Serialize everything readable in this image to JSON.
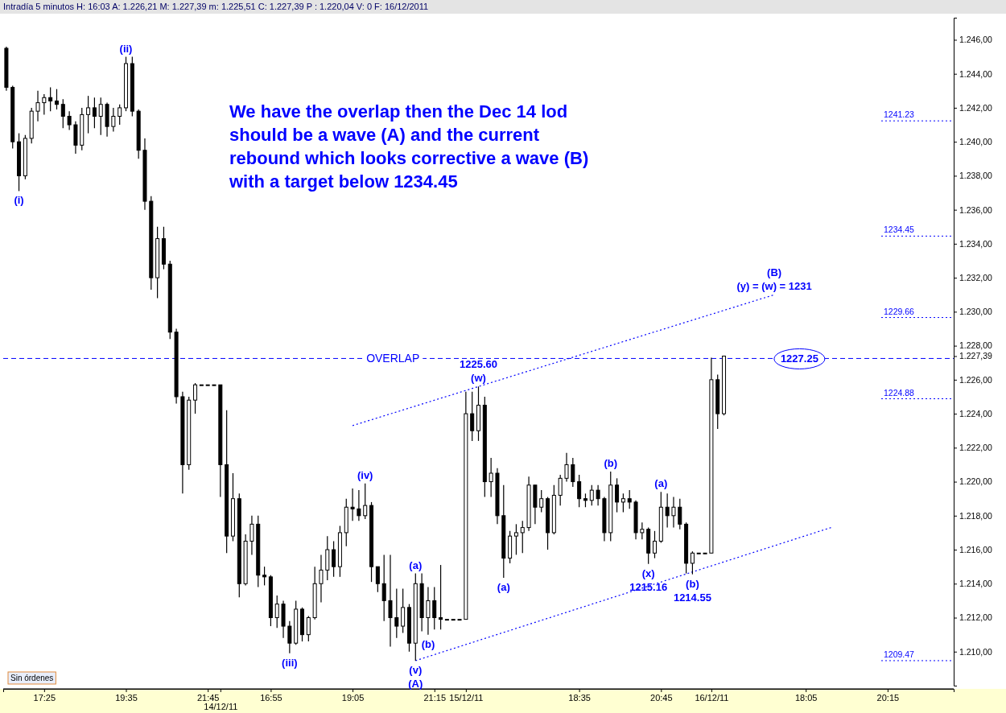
{
  "chart_data": {
    "type": "candlestick",
    "title": "Intradía 5 minutos H: 16:03 A: 1.226,21 M: 1.227,39 m: 1.225,51 C: 1.227,39 P : 1.220,04 V: 0 F: 16/12/2011",
    "color": "#000000",
    "categories": [
      null,
      null,
      null,
      null,
      null,
      null,
      "17:25",
      null,
      null,
      null,
      null,
      null,
      null,
      null,
      null,
      null,
      null,
      null,
      null,
      "19:35",
      null,
      null,
      null,
      null,
      null,
      null,
      null,
      null,
      null,
      null,
      null,
      null,
      "21:45",
      null,
      "14/12/11",
      null,
      null,
      null,
      null,
      null,
      null,
      null,
      "16:55",
      null,
      null,
      null,
      null,
      null,
      null,
      null,
      null,
      null,
      null,
      null,
      null,
      "19:05",
      null,
      null,
      null,
      null,
      null,
      null,
      null,
      null,
      null,
      null,
      null,
      null,
      "21:15",
      null,
      null,
      null,
      null,
      "15/12/11",
      null,
      null,
      null,
      null,
      null,
      null,
      null,
      null,
      null,
      null,
      null,
      null,
      null,
      null,
      null,
      null,
      null,
      "18:35",
      null,
      null,
      null,
      null,
      null,
      null,
      null,
      null,
      null,
      null,
      null,
      null,
      "20:45",
      null,
      null,
      null,
      null,
      null,
      null,
      null,
      "16/12/11",
      null,
      null,
      null,
      null,
      null,
      null,
      null,
      null,
      null,
      null,
      null,
      null,
      null,
      null,
      "18:05",
      null,
      null,
      null,
      null,
      null,
      null,
      null,
      null,
      null,
      null,
      null,
      null,
      "20:15",
      null,
      null,
      null,
      null,
      null,
      null,
      null,
      null,
      null,
      null
    ],
    "ohlc": [
      [
        1245.5,
        1245.6,
        1243.0,
        1243.2
      ],
      [
        1243.2,
        1243.3,
        1239.6,
        1240.0
      ],
      [
        1240.0,
        1240.5,
        1237.1,
        1238.0
      ],
      [
        1238.0,
        1240.4,
        1237.8,
        1240.2
      ],
      [
        1240.2,
        1242.0,
        1239.9,
        1241.8
      ],
      [
        1241.8,
        1243.0,
        1241.2,
        1242.3
      ],
      [
        1242.3,
        1242.8,
        1241.6,
        1242.6
      ],
      [
        1242.6,
        1243.2,
        1241.8,
        1242.4
      ],
      [
        1242.4,
        1243.1,
        1241.9,
        1242.2
      ],
      [
        1242.2,
        1242.5,
        1240.8,
        1241.5
      ],
      [
        1241.5,
        1241.8,
        1240.7,
        1241.0
      ],
      [
        1241.0,
        1241.2,
        1239.3,
        1239.8
      ],
      [
        1239.8,
        1242.0,
        1239.5,
        1241.6
      ],
      [
        1241.6,
        1242.7,
        1240.5,
        1242.0
      ],
      [
        1242.0,
        1242.6,
        1240.8,
        1241.5
      ],
      [
        1241.5,
        1242.6,
        1240.4,
        1242.2
      ],
      [
        1242.2,
        1242.3,
        1240.3,
        1240.9
      ],
      [
        1240.9,
        1242.0,
        1240.6,
        1241.5
      ],
      [
        1241.5,
        1242.2,
        1241.0,
        1242.0
      ],
      [
        1242.0,
        1245.0,
        1241.8,
        1244.6
      ],
      [
        1244.6,
        1245.0,
        1241.5,
        1241.8
      ],
      [
        1241.8,
        1241.9,
        1239.0,
        1239.5
      ],
      [
        1239.5,
        1240.2,
        1236.0,
        1236.5
      ],
      [
        1236.5,
        1236.8,
        1231.3,
        1232.0
      ],
      [
        1232.0,
        1235.0,
        1230.8,
        1234.3
      ],
      [
        1234.3,
        1235.0,
        1232.5,
        1232.8
      ],
      [
        1232.8,
        1233.0,
        1228.4,
        1228.8
      ],
      [
        1228.8,
        1229.0,
        1224.6,
        1225.0
      ],
      [
        1225.0,
        1225.3,
        1219.3,
        1221.0
      ],
      [
        1221.0,
        1225.0,
        1220.7,
        1224.8
      ],
      [
        1224.8,
        1225.8,
        1224.0,
        1225.7
      ],
      [
        1225.7,
        1225.7,
        1225.7,
        1225.7
      ],
      [
        1225.7,
        1225.7,
        1225.7,
        1225.7
      ],
      [
        1225.7,
        1225.7,
        1225.7,
        1225.7
      ],
      [
        1225.7,
        1225.7,
        1219.1,
        1221.0
      ],
      [
        1221.0,
        1224.2,
        1215.8,
        1216.8
      ],
      [
        1216.8,
        1220.5,
        1216.5,
        1219.0
      ],
      [
        1219.0,
        1219.3,
        1213.2,
        1214.0
      ],
      [
        1214.0,
        1216.9,
        1213.9,
        1216.5
      ],
      [
        1216.5,
        1218.0,
        1215.7,
        1217.5
      ],
      [
        1217.5,
        1218.0,
        1213.8,
        1214.5
      ],
      [
        1214.5,
        1215.0,
        1213.9,
        1214.4
      ],
      [
        1214.4,
        1214.5,
        1211.5,
        1212.0
      ],
      [
        1212.0,
        1213.3,
        1211.4,
        1212.8
      ],
      [
        1212.8,
        1213.0,
        1210.8,
        1211.5
      ],
      [
        1211.5,
        1211.8,
        1209.9,
        1210.5
      ],
      [
        1210.5,
        1213.0,
        1210.4,
        1212.5
      ],
      [
        1212.5,
        1212.6,
        1210.6,
        1211.0
      ],
      [
        1211.0,
        1212.1,
        1210.6,
        1212.0
      ],
      [
        1212.0,
        1215.0,
        1211.9,
        1214.0
      ],
      [
        1214.0,
        1215.7,
        1212.9,
        1214.8
      ],
      [
        1214.8,
        1216.8,
        1214.2,
        1216.0
      ],
      [
        1216.0,
        1216.5,
        1214.4,
        1215.0
      ],
      [
        1215.0,
        1217.4,
        1214.4,
        1217.0
      ],
      [
        1217.0,
        1219.0,
        1216.2,
        1218.5
      ],
      [
        1218.5,
        1219.6,
        1217.7,
        1218.4
      ],
      [
        1218.4,
        1219.5,
        1217.7,
        1218.0
      ],
      [
        1218.0,
        1219.9,
        1217.8,
        1218.6
      ],
      [
        1218.6,
        1218.8,
        1214.1,
        1215.0
      ],
      [
        1215.0,
        1215.0,
        1213.5,
        1214.0
      ],
      [
        1214.0,
        1215.7,
        1211.8,
        1213.0
      ],
      [
        1213.0,
        1215.7,
        1210.3,
        1212.0
      ],
      [
        1212.0,
        1213.7,
        1210.8,
        1211.5
      ],
      [
        1211.5,
        1213.7,
        1211.1,
        1212.6
      ],
      [
        1212.6,
        1212.8,
        1210.0,
        1210.5
      ],
      [
        1210.5,
        1214.6,
        1209.47,
        1214.0
      ],
      [
        1214.0,
        1214.6,
        1211.2,
        1212.0
      ],
      [
        1212.0,
        1213.8,
        1211.0,
        1213.0
      ],
      [
        1213.0,
        1213.8,
        1211.3,
        1212.0
      ],
      [
        1212.0,
        1215.1,
        1211.3,
        1211.9
      ],
      [
        1211.9,
        1211.9,
        1211.9,
        1211.9
      ],
      [
        1211.9,
        1211.9,
        1211.9,
        1211.9
      ],
      [
        1211.9,
        1211.9,
        1211.9,
        1211.9
      ],
      [
        1211.9,
        1225.3,
        1211.9,
        1224.0
      ],
      [
        1224.0,
        1225.3,
        1222.4,
        1223.0
      ],
      [
        1223.0,
        1225.6,
        1222.4,
        1224.5
      ],
      [
        1224.5,
        1225.0,
        1219.1,
        1220.0
      ],
      [
        1220.0,
        1221.4,
        1219.1,
        1220.5
      ],
      [
        1220.5,
        1220.8,
        1217.5,
        1218.0
      ],
      [
        1218.0,
        1219.8,
        1214.35,
        1215.5
      ],
      [
        1215.5,
        1217.1,
        1215.2,
        1216.8
      ],
      [
        1216.8,
        1217.5,
        1215.7,
        1217.0
      ],
      [
        1217.0,
        1217.7,
        1215.8,
        1217.3
      ],
      [
        1217.3,
        1220.3,
        1217.1,
        1219.8
      ],
      [
        1219.8,
        1219.8,
        1217.5,
        1218.5
      ],
      [
        1218.5,
        1219.5,
        1218.2,
        1219.0
      ],
      [
        1219.0,
        1219.1,
        1216.0,
        1217.0
      ],
      [
        1217.0,
        1219.8,
        1216.9,
        1219.2
      ],
      [
        1219.2,
        1220.4,
        1218.6,
        1220.2
      ],
      [
        1220.2,
        1221.7,
        1220.0,
        1221.0
      ],
      [
        1221.0,
        1221.4,
        1219.7,
        1220.0
      ],
      [
        1220.0,
        1220.4,
        1218.5,
        1219.0
      ],
      [
        1219.0,
        1219.3,
        1218.5,
        1218.9
      ],
      [
        1218.9,
        1219.8,
        1218.6,
        1219.5
      ],
      [
        1219.5,
        1219.8,
        1218.6,
        1219.0
      ],
      [
        1219.0,
        1219.1,
        1216.5,
        1217.0
      ],
      [
        1217.0,
        1220.6,
        1216.5,
        1219.8
      ],
      [
        1219.8,
        1220.2,
        1218.2,
        1218.8
      ],
      [
        1218.8,
        1219.3,
        1218.2,
        1219.0
      ],
      [
        1219.0,
        1219.5,
        1218.4,
        1218.8
      ],
      [
        1218.8,
        1218.9,
        1216.6,
        1217.0
      ],
      [
        1217.0,
        1217.6,
        1216.6,
        1217.2
      ],
      [
        1217.2,
        1217.3,
        1215.16,
        1215.8
      ],
      [
        1215.8,
        1217.1,
        1215.5,
        1216.5
      ],
      [
        1216.5,
        1219.4,
        1216.4,
        1218.5
      ],
      [
        1218.5,
        1219.3,
        1217.3,
        1218.0
      ],
      [
        1218.0,
        1219.1,
        1217.3,
        1218.5
      ],
      [
        1218.5,
        1219.0,
        1217.2,
        1217.5
      ],
      [
        1217.5,
        1217.6,
        1214.6,
        1215.2
      ],
      [
        1215.2,
        1215.9,
        1214.55,
        1215.8
      ],
      [
        1215.8,
        1215.8,
        1215.8,
        1215.8
      ],
      [
        1215.8,
        1215.8,
        1215.8,
        1215.8
      ],
      [
        1215.8,
        1227.3,
        1215.8,
        1226.0
      ],
      [
        1226.0,
        1226.3,
        1223.1,
        1224.0
      ],
      [
        1224.0,
        1227.39,
        1223.9,
        1227.39
      ],
      null,
      null,
      null,
      null,
      null,
      null,
      null,
      null,
      null,
      null,
      null,
      null,
      null,
      null,
      null,
      null,
      null,
      null,
      null,
      null,
      null,
      null,
      null,
      null,
      null,
      null,
      null,
      null,
      null,
      null,
      null,
      null,
      null,
      null,
      null,
      null
    ],
    "series": [
      {
        "type": "line",
        "color": "#0000ff",
        "line_style": "dotted",
        "values": [
          null,
          null,
          null,
          null,
          null,
          null,
          null,
          null,
          null,
          null,
          null,
          null,
          null,
          null,
          null,
          null,
          null,
          null,
          null,
          null,
          null,
          null,
          null,
          null,
          null,
          null,
          null,
          null,
          null,
          null,
          null,
          null,
          null,
          null,
          null,
          null,
          null,
          null,
          null,
          null,
          null,
          null,
          null,
          null,
          null,
          null,
          null,
          null,
          null,
          null,
          null,
          null,
          null,
          null,
          null,
          1223.3,
          null,
          null,
          null,
          null,
          null,
          null,
          null,
          null,
          null,
          null,
          null,
          null,
          null,
          null,
          null,
          null,
          null,
          null,
          null,
          null,
          null,
          null,
          null,
          null,
          null,
          null,
          null,
          null,
          null,
          null,
          null,
          null,
          null,
          null,
          null,
          null,
          null,
          null,
          null,
          null,
          null,
          null,
          null,
          null,
          null,
          null,
          null,
          null,
          null,
          null,
          null,
          null,
          null,
          null,
          null,
          null,
          null,
          null,
          null,
          null,
          null,
          null,
          null,
          null,
          null,
          null,
          1231.0,
          null,
          null,
          null,
          null,
          null,
          null,
          null,
          null,
          null,
          null,
          null,
          null,
          null,
          null,
          null,
          null,
          null,
          null,
          null,
          null,
          null,
          null,
          null,
          null,
          null,
          null,
          null,
          null
        ]
      },
      {
        "type": "line",
        "color": "#0000ff",
        "line_style": "dotted",
        "values": [
          null,
          null,
          null,
          null,
          null,
          null,
          null,
          null,
          null,
          null,
          null,
          null,
          null,
          null,
          null,
          null,
          null,
          null,
          null,
          null,
          null,
          null,
          null,
          null,
          null,
          null,
          null,
          null,
          null,
          null,
          null,
          null,
          null,
          null,
          null,
          null,
          null,
          null,
          null,
          null,
          null,
          null,
          null,
          null,
          null,
          null,
          null,
          null,
          null,
          null,
          null,
          null,
          null,
          null,
          null,
          null,
          null,
          null,
          null,
          null,
          null,
          null,
          null,
          null,
          null,
          1209.47,
          null,
          null,
          null,
          null,
          null,
          null,
          null,
          null,
          null,
          null,
          null,
          null,
          null,
          null,
          null,
          null,
          null,
          null,
          null,
          null,
          null,
          null,
          null,
          null,
          null,
          null,
          null,
          null,
          null,
          null,
          null,
          null,
          null,
          null,
          null,
          null,
          null,
          null,
          null,
          null,
          null,
          null,
          null,
          null,
          null,
          null,
          null,
          null,
          null,
          null,
          null,
          null,
          null,
          null,
          null,
          null,
          null,
          null,
          null,
          null,
          null,
          null,
          null,
          null,
          null,
          1217.3,
          null,
          null,
          null,
          null,
          null,
          null,
          null,
          null,
          null,
          null,
          null,
          null,
          null,
          null,
          null,
          null,
          null,
          null,
          null
        ]
      }
    ],
    "ylim": [
      1208.0,
      1247.3
    ],
    "yticks": [
      {
        "value": 1210,
        "label": "1.210,00"
      },
      {
        "value": 1212,
        "label": "1.212,00"
      },
      {
        "value": 1214,
        "label": "1.214,00"
      },
      {
        "value": 1216,
        "label": "1.216,00"
      },
      {
        "value": 1218,
        "label": "1.218,00"
      },
      {
        "value": 1220,
        "label": "1.220,00"
      },
      {
        "value": 1222,
        "label": "1.222,00"
      },
      {
        "value": 1224,
        "label": "1.224,00"
      },
      {
        "value": 1226,
        "label": "1.226,00"
      },
      {
        "value": 1227.39,
        "label": "1.227,39"
      },
      {
        "value": 1228,
        "label": "1.228,00"
      },
      {
        "value": 1230,
        "label": "1.230,00"
      },
      {
        "value": 1232,
        "label": "1.232,00"
      },
      {
        "value": 1234,
        "label": "1.234,00"
      },
      {
        "value": 1236,
        "label": "1.236,00"
      },
      {
        "value": 1238,
        "label": "1.238,00"
      },
      {
        "value": 1240,
        "label": "1.240,00"
      },
      {
        "value": 1242,
        "label": "1.242,00"
      },
      {
        "value": 1244,
        "label": "1.244,00"
      },
      {
        "value": 1246,
        "label": "1.246,00"
      }
    ],
    "ref_lines": [
      {
        "axis": "y",
        "value": 1227.25,
        "label": "OVERLAP",
        "line_style": "dashed",
        "color": "#0000ff"
      },
      {
        "axis": "y",
        "value": 1241.23,
        "label": "1241.23",
        "line_style": "dotted",
        "color": "#0000ff"
      },
      {
        "axis": "y",
        "value": 1234.45,
        "label": "1234.45",
        "line_style": "dotted",
        "color": "#0000ff"
      },
      {
        "axis": "y",
        "value": 1229.66,
        "label": "1229.66",
        "line_style": "dotted",
        "color": "#0000ff"
      },
      {
        "axis": "y",
        "value": 1224.88,
        "label": "1224.88",
        "line_style": "dotted",
        "color": "#0000ff"
      },
      {
        "axis": "y",
        "value": 1209.47,
        "label": "1209.47",
        "line_style": "dotted",
        "color": "#0000ff"
      }
    ],
    "annotations": [
      "We have the overlap then the Dec 14 lod should be a wave (A) and the current rebound which looks corrective a wave (B) with a target below 1234.45",
      "Sin órdenes",
      {
        "text": "(i)",
        "y": 1237.1
      },
      {
        "text": "(ii)",
        "y": 1245.0
      },
      {
        "text": "(iii)",
        "y": 1209.9
      },
      {
        "text": "(iv)",
        "y": 1219.9
      },
      {
        "text": "(v)",
        "y": 1209.47
      },
      {
        "text": "(A)",
        "y": 1209.47
      },
      {
        "text": "(a)",
        "y": 1214.6
      },
      {
        "text": "(b)",
        "y": 1211.0
      },
      {
        "text": "(w)",
        "y": 1225.6
      },
      {
        "text": "1225.60",
        "y": 1225.6
      },
      {
        "text": "(a)",
        "y": 1214.35
      },
      {
        "text": "(b)",
        "y": 1220.6
      },
      {
        "text": "(x)",
        "y": 1215.16
      },
      {
        "text": "1215.16",
        "y": 1215.16
      },
      {
        "text": "(a)",
        "y": 1219.4
      },
      {
        "text": "(b)",
        "y": 1214.55
      },
      {
        "text": "1214.55",
        "y": 1214.55
      },
      {
        "text": "(y) = (w) = 1231",
        "y": 1231
      },
      {
        "text": "(B)",
        "y": 1231
      },
      {
        "text": "1227.25",
        "y": 1227.25
      }
    ]
  }
}
